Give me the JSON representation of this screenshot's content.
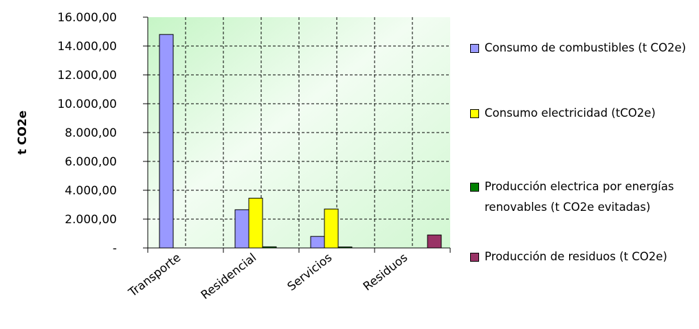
{
  "chart_data": {
    "type": "bar",
    "y_label": "t CO2e",
    "categories": [
      "Transporte",
      "Residencial",
      "Servicios",
      "Residuos"
    ],
    "series": [
      {
        "name": "Consumo de combustibles (t CO2e)",
        "color": "#9999ff",
        "values": [
          14800,
          2650,
          800,
          0
        ]
      },
      {
        "name": "Consumo electricidad (tCO2e)",
        "color": "#ffff00",
        "values": [
          0,
          3450,
          2700,
          0
        ]
      },
      {
        "name": "Producción electrica por energías renovables (t CO2e evitadas)",
        "color": "#008000",
        "values": [
          0,
          80,
          70,
          0
        ]
      },
      {
        "name": "Producción de residuos (t CO2e)",
        "color": "#993366",
        "values": [
          0,
          0,
          0,
          900
        ]
      }
    ],
    "ylim": [
      0,
      16000
    ],
    "yticks": [
      {
        "value": 0,
        "label": "-"
      },
      {
        "value": 2000,
        "label": "2.000,00"
      },
      {
        "value": 4000,
        "label": "4.000,00"
      },
      {
        "value": 6000,
        "label": "6.000,00"
      },
      {
        "value": 8000,
        "label": "8.000,00"
      },
      {
        "value": 10000,
        "label": "10.000,00"
      },
      {
        "value": 12000,
        "label": "12.000,00"
      },
      {
        "value": 14000,
        "label": "14.000,00"
      },
      {
        "value": 16000,
        "label": "16.000,00"
      }
    ],
    "grid": true,
    "legend": "right"
  }
}
